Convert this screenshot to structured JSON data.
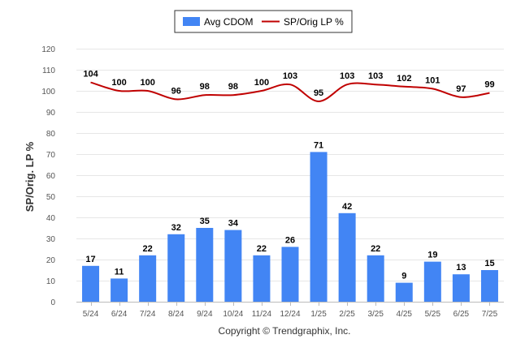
{
  "chart_data": {
    "type": "bar",
    "categories": [
      "5/24",
      "6/24",
      "7/24",
      "8/24",
      "9/24",
      "10/24",
      "11/24",
      "12/24",
      "1/25",
      "2/25",
      "3/25",
      "4/25",
      "5/25",
      "6/25",
      "7/25"
    ],
    "series": [
      {
        "name": "Avg CDOM",
        "type": "bar",
        "color": "#4285f4",
        "values": [
          17,
          11,
          22,
          32,
          35,
          34,
          22,
          26,
          71,
          42,
          22,
          9,
          19,
          13,
          15
        ]
      },
      {
        "name": "SP/Orig LP %",
        "type": "line",
        "color": "#c00000",
        "values": [
          104,
          100,
          100,
          96,
          98,
          98,
          100,
          103,
          95,
          103,
          103,
          102,
          101,
          97,
          99
        ]
      }
    ],
    "ylabel": "SP/Orig. LP %",
    "ylim": [
      0,
      120
    ],
    "yticks": [
      0,
      10,
      20,
      30,
      40,
      50,
      60,
      70,
      80,
      90,
      100,
      110,
      120
    ],
    "grid": true,
    "legend_position": "top-center"
  },
  "footer": {
    "copyright": "Copyright © Trendgraphix, Inc."
  }
}
